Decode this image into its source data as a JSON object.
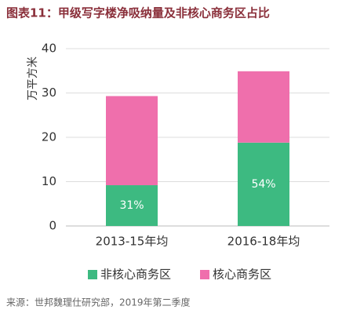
{
  "chart_data": {
    "type": "stacked_bar",
    "title": "图表11：甲级写字楼净吸纳量及非核心商务区占比",
    "y_label": "万平方米",
    "categories": [
      "2013-15年均",
      "2016-18年均"
    ],
    "series": [
      {
        "name": "非核心商务区",
        "color": "#3dba81",
        "values": [
          9.2,
          18.8
        ]
      },
      {
        "name": "核心商务区",
        "color": "#ef6fac",
        "values": [
          20.1,
          16.1
        ]
      }
    ],
    "annotations": [
      "31%",
      "54%"
    ],
    "ylim": [
      0,
      40
    ],
    "yticks": [
      0,
      10,
      20,
      30,
      40
    ],
    "grid": true,
    "source": "来源：世邦魏理仕研究部，2019年第二季度"
  }
}
